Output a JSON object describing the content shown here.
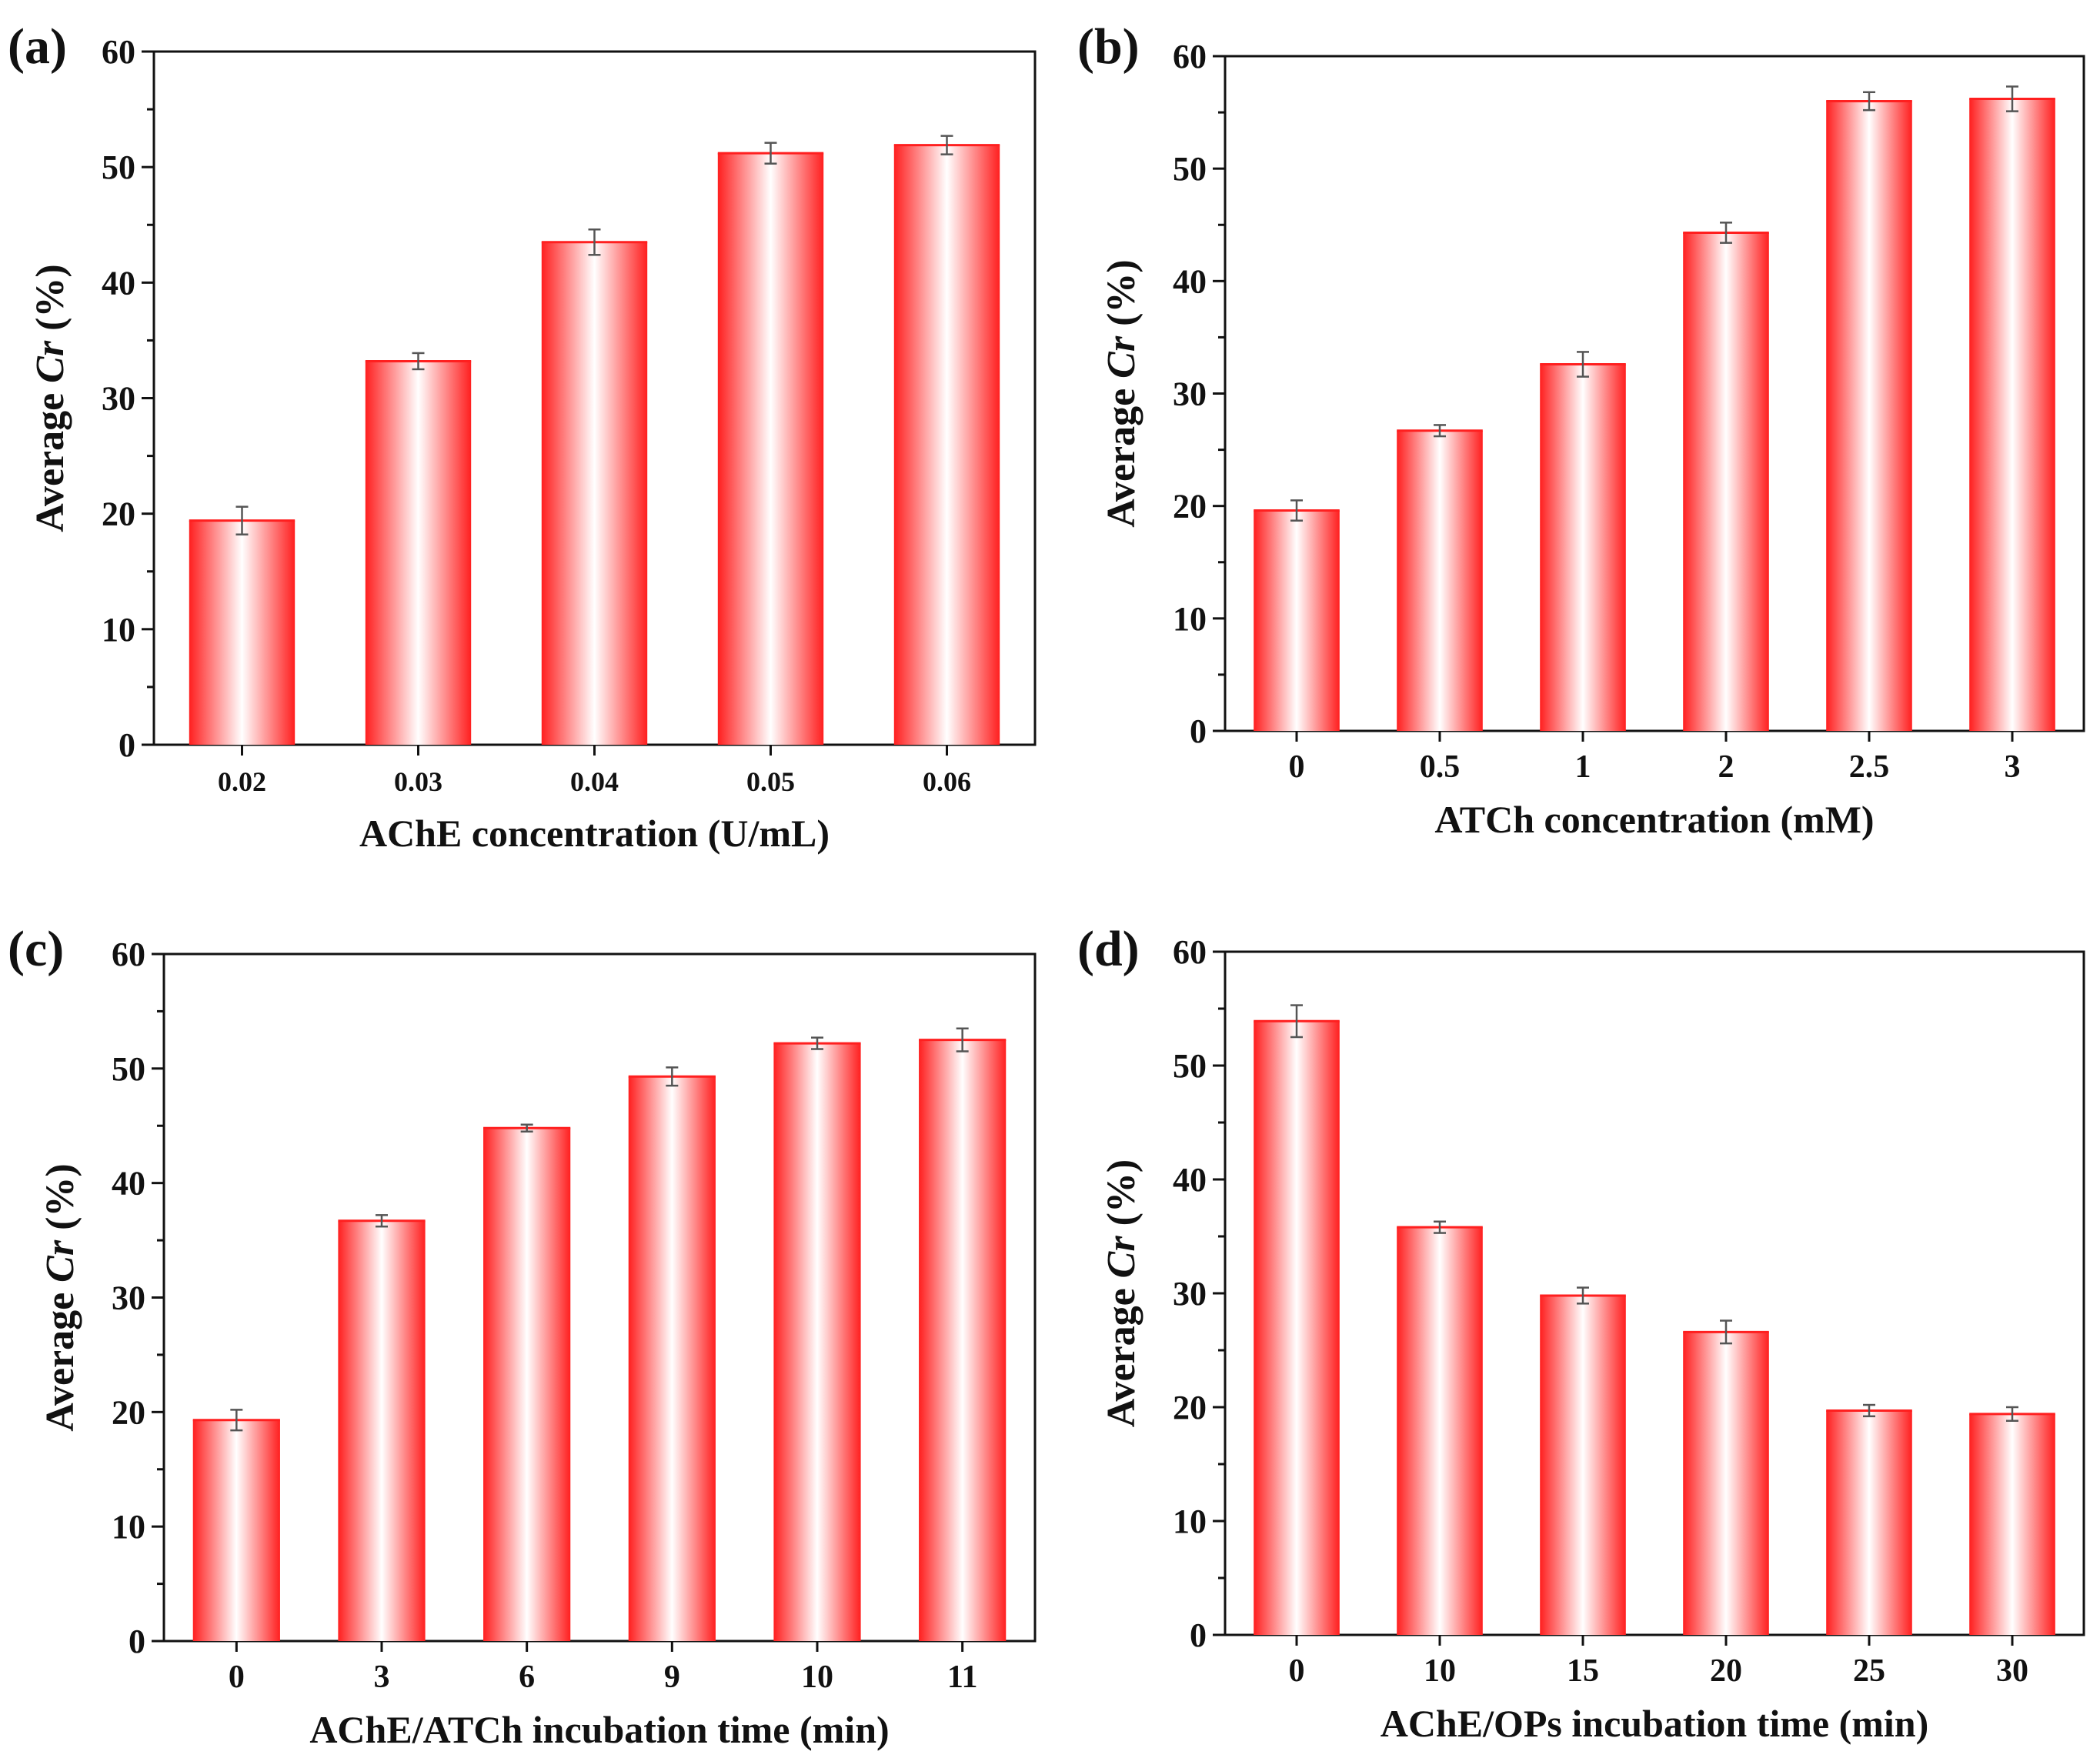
{
  "chart_data": [
    {
      "panel_label": "(a)",
      "type": "bar",
      "categories": [
        "0.02",
        "0.03",
        "0.04",
        "0.05",
        "0.06"
      ],
      "values": [
        19.4,
        33.2,
        43.5,
        51.2,
        51.9
      ],
      "errors": [
        1.2,
        0.7,
        1.1,
        0.9,
        0.8
      ],
      "xlabel": "AChE concentration (U/mL)",
      "ylabel_prefix": "Average ",
      "ylabel_italic": "Cr",
      "ylabel_suffix": " (%)",
      "ylim": [
        0,
        60
      ],
      "yticks": [
        "0",
        "10",
        "20",
        "30",
        "40",
        "50",
        "60"
      ],
      "bar_color": "#ff1f1f"
    },
    {
      "panel_label": "(b)",
      "type": "bar",
      "categories": [
        "0",
        "0.5",
        "1",
        "2",
        "2.5",
        "3"
      ],
      "values": [
        19.6,
        26.7,
        32.6,
        44.3,
        56.0,
        56.2
      ],
      "errors": [
        0.9,
        0.5,
        1.1,
        0.9,
        0.8,
        1.1
      ],
      "xlabel": "ATCh concentration (mM)",
      "ylabel_prefix": "Average ",
      "ylabel_italic": "Cr",
      "ylabel_suffix": " (%)",
      "ylim": [
        0,
        60
      ],
      "yticks": [
        "0",
        "10",
        "20",
        "30",
        "40",
        "50",
        "60"
      ],
      "bar_color": "#ff1f1f"
    },
    {
      "panel_label": "(c)",
      "type": "bar",
      "categories": [
        "0",
        "3",
        "6",
        "9",
        "10",
        "11"
      ],
      "values": [
        19.3,
        36.7,
        44.8,
        49.3,
        52.2,
        52.5
      ],
      "errors": [
        0.9,
        0.5,
        0.3,
        0.8,
        0.5,
        1.0
      ],
      "xlabel": "AChE/ATCh incubation time (min)",
      "ylabel_prefix": "Average ",
      "ylabel_italic": "Cr",
      "ylabel_suffix": " (%)",
      "ylim": [
        0,
        60
      ],
      "yticks": [
        "0",
        "10",
        "20",
        "30",
        "40",
        "50",
        "60"
      ],
      "bar_color": "#ff1f1f"
    },
    {
      "panel_label": "(d)",
      "type": "bar",
      "categories": [
        "0",
        "10",
        "15",
        "20",
        "25",
        "30"
      ],
      "values": [
        53.9,
        35.8,
        29.8,
        26.6,
        19.7,
        19.4
      ],
      "errors": [
        1.4,
        0.5,
        0.7,
        1.0,
        0.5,
        0.6
      ],
      "xlabel": "AChE/OPs incubation time (min)",
      "ylabel_prefix": "Average ",
      "ylabel_italic": "Cr",
      "ylabel_suffix": " (%)",
      "ylim": [
        0,
        60
      ],
      "yticks": [
        "0",
        "10",
        "20",
        "30",
        "40",
        "50",
        "60"
      ],
      "bar_color": "#ff1f1f"
    }
  ]
}
